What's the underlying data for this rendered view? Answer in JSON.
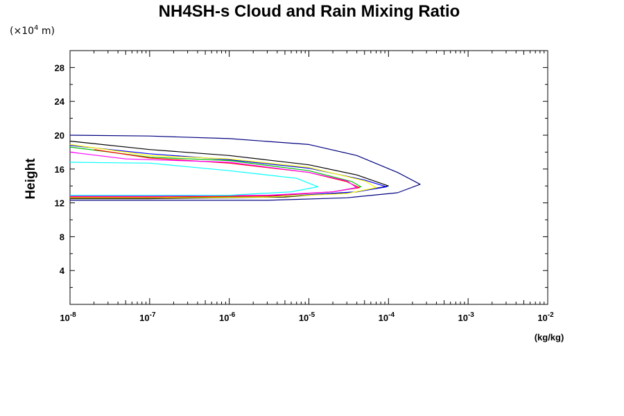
{
  "chart_data": {
    "type": "line",
    "title": "NH4SH-s Cloud and Rain Mixing Ratio",
    "y_multiplier_label": "(×10",
    "y_multiplier_exp": "4",
    "y_multiplier_unit": " m)",
    "ylabel": "Height",
    "xlabel": "(kg/kg)",
    "x_scale": "log",
    "xlim": [
      1e-08,
      0.01
    ],
    "ylim": [
      0,
      30
    ],
    "y_ticks": [
      4,
      8,
      12,
      16,
      20,
      24,
      28
    ],
    "x_ticks": [
      {
        "base": "10",
        "exp": "-8"
      },
      {
        "base": "10",
        "exp": "-7"
      },
      {
        "base": "10",
        "exp": "-6"
      },
      {
        "base": "10",
        "exp": "-5"
      },
      {
        "base": "10",
        "exp": "-4"
      },
      {
        "base": "10",
        "exp": "-3"
      },
      {
        "base": "10",
        "exp": "-2"
      }
    ],
    "series": [
      {
        "color": "#000080",
        "points": [
          [
            1e-08,
            20.0
          ],
          [
            1e-07,
            19.9
          ],
          [
            1e-06,
            19.6
          ],
          [
            1e-05,
            18.9
          ],
          [
            4e-05,
            17.6
          ],
          [
            0.00013,
            15.6
          ],
          [
            0.00025,
            14.2
          ],
          [
            0.00013,
            13.2
          ],
          [
            3e-05,
            12.6
          ],
          [
            3e-06,
            12.3
          ],
          [
            1e-07,
            12.3
          ],
          [
            1e-08,
            12.3
          ]
        ]
      },
      {
        "color": "#000000",
        "points": [
          [
            1e-08,
            19.3
          ],
          [
            1e-07,
            18.3
          ],
          [
            1e-06,
            17.6
          ],
          [
            1e-05,
            16.5
          ],
          [
            4e-05,
            15.3
          ],
          [
            0.0001,
            14.0
          ],
          [
            4e-05,
            13.3
          ],
          [
            5e-06,
            12.7
          ],
          [
            1e-07,
            12.5
          ],
          [
            1e-08,
            12.5
          ]
        ]
      },
      {
        "color": "#0000ff",
        "points": [
          [
            1e-08,
            18.8
          ],
          [
            1e-07,
            17.8
          ],
          [
            1e-06,
            17.1
          ],
          [
            1e-05,
            16.1
          ],
          [
            5e-05,
            14.7
          ],
          [
            9.5e-05,
            13.9
          ],
          [
            4e-05,
            13.3
          ],
          [
            5e-06,
            12.8
          ],
          [
            1e-07,
            12.6
          ],
          [
            1e-08,
            12.6
          ]
        ]
      },
      {
        "color": "#ffff00",
        "points": [
          [
            1e-08,
            18.9
          ],
          [
            1e-07,
            17.6
          ],
          [
            1e-06,
            17.2
          ],
          [
            1e-05,
            16.2
          ],
          [
            5e-05,
            14.6
          ],
          [
            7e-05,
            13.8
          ],
          [
            3e-05,
            13.1
          ],
          [
            3e-06,
            12.7
          ],
          [
            1e-07,
            12.6
          ],
          [
            1e-08,
            12.6
          ]
        ]
      },
      {
        "color": "#00c000",
        "points": [
          [
            1e-08,
            18.6
          ],
          [
            1e-07,
            17.4
          ],
          [
            1e-06,
            17.0
          ],
          [
            1e-05,
            15.8
          ],
          [
            3.5e-05,
            14.5
          ],
          [
            4.5e-05,
            13.9
          ],
          [
            2e-05,
            13.3
          ],
          [
            3e-06,
            12.8
          ],
          [
            1e-07,
            12.7
          ],
          [
            1e-08,
            12.7
          ]
        ]
      },
      {
        "color": "#ff0000",
        "points": [
          [
            2e-08,
            18.3
          ],
          [
            1e-07,
            17.3
          ],
          [
            1e-06,
            16.7
          ],
          [
            1e-05,
            15.6
          ],
          [
            3e-05,
            14.5
          ],
          [
            4.3e-05,
            13.8
          ],
          [
            2e-05,
            13.3
          ],
          [
            3e-06,
            12.8
          ],
          [
            1e-07,
            12.7
          ],
          [
            1e-08,
            12.7
          ]
        ]
      },
      {
        "color": "#ff00ff",
        "points": [
          [
            1e-08,
            18.0
          ],
          [
            5e-08,
            17.2
          ],
          [
            1e-06,
            16.8
          ],
          [
            1e-05,
            15.6
          ],
          [
            3e-05,
            14.6
          ],
          [
            4e-05,
            13.8
          ],
          [
            2e-05,
            13.3
          ],
          [
            3e-06,
            12.9
          ],
          [
            1e-07,
            12.8
          ],
          [
            1e-08,
            12.8
          ]
        ]
      },
      {
        "color": "#00ffff",
        "points": [
          [
            1e-08,
            16.8
          ],
          [
            1e-07,
            16.7
          ],
          [
            1e-06,
            15.8
          ],
          [
            7e-06,
            14.9
          ],
          [
            1.3e-05,
            13.9
          ],
          [
            6e-06,
            13.3
          ],
          [
            1e-06,
            12.9
          ],
          [
            1e-07,
            12.9
          ],
          [
            1e-08,
            12.9
          ]
        ]
      }
    ]
  }
}
